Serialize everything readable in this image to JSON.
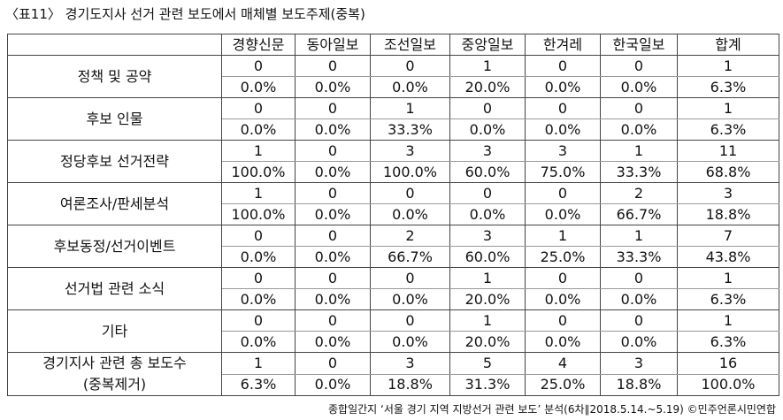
{
  "title": "〈표11〉 경기도지사 선거 관련 보도에서 매체별 보도주제(중복)",
  "table": {
    "columns": [
      "경향신문",
      "동아일보",
      "조선일보",
      "중앙일보",
      "한겨레",
      "한국일보",
      "합계"
    ],
    "rows": [
      {
        "label": "정책 및 공약",
        "counts": [
          "0",
          "0",
          "0",
          "1",
          "0",
          "0",
          "1"
        ],
        "percents": [
          "0.0%",
          "0.0%",
          "0.0%",
          "20.0%",
          "0.0%",
          "0.0%",
          "6.3%"
        ]
      },
      {
        "label": "후보 인물",
        "counts": [
          "0",
          "0",
          "1",
          "0",
          "0",
          "0",
          "1"
        ],
        "percents": [
          "0.0%",
          "0.0%",
          "33.3%",
          "0.0%",
          "0.0%",
          "0.0%",
          "6.3%"
        ]
      },
      {
        "label": "정당후보 선거전략",
        "counts": [
          "1",
          "0",
          "3",
          "3",
          "3",
          "1",
          "11"
        ],
        "percents": [
          "100.0%",
          "0.0%",
          "100.0%",
          "60.0%",
          "75.0%",
          "33.3%",
          "68.8%"
        ]
      },
      {
        "label": "여론조사/판세분석",
        "counts": [
          "1",
          "0",
          "0",
          "0",
          "0",
          "2",
          "3"
        ],
        "percents": [
          "100.0%",
          "0.0%",
          "0.0%",
          "0.0%",
          "0.0%",
          "66.7%",
          "18.8%"
        ]
      },
      {
        "label": "후보동정/선거이벤트",
        "counts": [
          "0",
          "0",
          "2",
          "3",
          "1",
          "1",
          "7"
        ],
        "percents": [
          "0.0%",
          "0.0%",
          "66.7%",
          "60.0%",
          "25.0%",
          "33.3%",
          "43.8%"
        ]
      },
      {
        "label": "선거법 관련 소식",
        "counts": [
          "0",
          "0",
          "0",
          "1",
          "0",
          "0",
          "1"
        ],
        "percents": [
          "0.0%",
          "0.0%",
          "0.0%",
          "20.0%",
          "0.0%",
          "0.0%",
          "6.3%"
        ]
      },
      {
        "label": "기타",
        "counts": [
          "0",
          "0",
          "0",
          "1",
          "0",
          "0",
          "1"
        ],
        "percents": [
          "0.0%",
          "0.0%",
          "0.0%",
          "20.0%",
          "0.0%",
          "0.0%",
          "6.3%"
        ]
      },
      {
        "label": "경기지사 관련 총 보도수",
        "sublabel": "(중복제거)",
        "counts": [
          "1",
          "0",
          "3",
          "5",
          "4",
          "3",
          "16"
        ],
        "percents": [
          "6.3%",
          "0.0%",
          "18.8%",
          "31.3%",
          "25.0%",
          "18.8%",
          "100.0%"
        ]
      }
    ]
  },
  "footer": "종합일간지 ‘서울 경기 지역 지방선거 관련 보도’ 분석(6차∥2018.5.14.~5.19) ©민주언론시민연합"
}
